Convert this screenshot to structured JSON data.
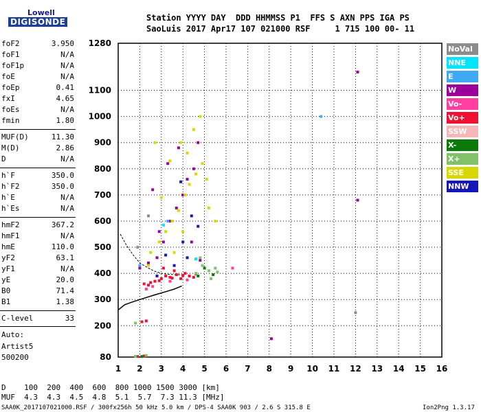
{
  "logo": {
    "line1": "Lowell",
    "line2": "DIGISONDE"
  },
  "header": {
    "line1": "Station YYYY DAY  DDD HHMMSS P1  FFS S AXN PPS IGA PS",
    "line2": "SaoLuis 2017 Apr17 107 021000 RSF     1 715 100 00- 11"
  },
  "params": [
    {
      "name": "foF2",
      "value": "3.950"
    },
    {
      "name": "foF1",
      "value": "N/A"
    },
    {
      "name": "foF1p",
      "value": "N/A"
    },
    {
      "name": "foE",
      "value": "N/A"
    },
    {
      "name": "foEp",
      "value": "0.41"
    },
    {
      "name": "fxI",
      "value": "4.65"
    },
    {
      "name": "foEs",
      "value": "N/A"
    },
    {
      "name": "fmin",
      "value": "1.80"
    },
    {
      "name": "MUF(D)",
      "value": "11.30"
    },
    {
      "name": "M(D)",
      "value": "2.86"
    },
    {
      "name": "D",
      "value": "N/A"
    },
    {
      "name": "h`F",
      "value": "350.0"
    },
    {
      "name": "h`F2",
      "value": "350.0"
    },
    {
      "name": "h`E",
      "value": "N/A"
    },
    {
      "name": "h`Es",
      "value": "N/A"
    },
    {
      "name": "hmF2",
      "value": "367.2"
    },
    {
      "name": "hmF1",
      "value": "N/A"
    },
    {
      "name": "hmE",
      "value": "110.0"
    },
    {
      "name": "yF2",
      "value": "63.1"
    },
    {
      "name": "yF1",
      "value": "N/A"
    },
    {
      "name": "yE",
      "value": "20.0"
    },
    {
      "name": "B0",
      "value": "71.4"
    },
    {
      "name": "B1",
      "value": "1.38"
    },
    {
      "name": "C-level",
      "value": "33"
    }
  ],
  "auto": {
    "label": "Auto:",
    "artist": "Artist5",
    "version": "500200"
  },
  "legend": [
    {
      "label": "NoVal",
      "color": "#8c8c8c"
    },
    {
      "label": "NNE",
      "color": "#00e5ff"
    },
    {
      "label": "E",
      "color": "#3fa9f5"
    },
    {
      "label": "W",
      "color": "#9b009b"
    },
    {
      "label": "Vo-",
      "color": "#ff3fa0"
    },
    {
      "label": "Vo+",
      "color": "#ee1131"
    },
    {
      "label": "SSW",
      "color": "#f4b6b6"
    },
    {
      "label": "X-",
      "color": "#0b7a0b"
    },
    {
      "label": "X+",
      "color": "#82c06a"
    },
    {
      "label": "SSE",
      "color": "#d8d800"
    },
    {
      "label": "NNW",
      "color": "#1616b8"
    }
  ],
  "bottom": {
    "d_row": "D    100  200  400  600  800 1000 1500 3000 [km]",
    "muf_row": "MUF  4.3  4.3  4.5  4.8  5.1  5.7  7.3 11.3 [MHz]",
    "footer_left": "SAA0K_2017107021000.RSF / 300fx256h 50 kHz 5.0 km / DPS-4 SAA0K 903 / 2.6 S 315.8 E",
    "footer_right": "Ion2Png 1.3.17"
  },
  "chart_data": {
    "type": "scatter",
    "title": "",
    "xlabel": "",
    "ylabel": "",
    "xlim": [
      1,
      16
    ],
    "ylim": [
      80,
      1280
    ],
    "x_ticks": [
      1,
      2,
      3,
      4,
      5,
      6,
      7,
      8,
      9,
      10,
      11,
      12,
      13,
      14,
      15,
      16
    ],
    "y_ticks": [
      80,
      200,
      300,
      400,
      500,
      600,
      700,
      800,
      900,
      1000,
      1100,
      1280
    ],
    "grid": true,
    "legend_position": "right",
    "series": [
      {
        "name": "Vo+",
        "color": "#ee1131",
        "points": [
          [
            2.2,
            360
          ],
          [
            2.4,
            355
          ],
          [
            2.7,
            370
          ],
          [
            3.0,
            380
          ],
          [
            3.2,
            390
          ],
          [
            3.4,
            385
          ],
          [
            3.7,
            395
          ],
          [
            3.9,
            380
          ],
          [
            4.1,
            400
          ],
          [
            4.3,
            390
          ],
          [
            4.5,
            385
          ],
          [
            2.5,
            365
          ],
          [
            2.9,
            372
          ],
          [
            3.5,
            382
          ],
          [
            4.0,
            392
          ],
          [
            4.6,
            398
          ],
          [
            3.1,
            420
          ],
          [
            3.6,
            410
          ],
          [
            2.1,
            215
          ],
          [
            2.3,
            218
          ],
          [
            1.9,
            82
          ],
          [
            2.2,
            84
          ]
        ]
      },
      {
        "name": "W",
        "color": "#9b009b",
        "points": [
          [
            2.0,
            420
          ],
          [
            2.4,
            440
          ],
          [
            2.8,
            460
          ],
          [
            3.1,
            520
          ],
          [
            3.4,
            600
          ],
          [
            3.7,
            650
          ],
          [
            4.0,
            700
          ],
          [
            4.2,
            760
          ],
          [
            4.5,
            800
          ],
          [
            4.7,
            900
          ],
          [
            3.3,
            820
          ],
          [
            3.8,
            880
          ],
          [
            4.4,
            520
          ],
          [
            4.8,
            450
          ],
          [
            8.1,
            150
          ],
          [
            12.1,
            680
          ],
          [
            12.1,
            1170
          ],
          [
            2.6,
            720
          ],
          [
            2.9,
            560
          ]
        ]
      },
      {
        "name": "SSE",
        "color": "#d8d800",
        "points": [
          [
            2.5,
            480
          ],
          [
            2.9,
            520
          ],
          [
            3.2,
            560
          ],
          [
            3.5,
            600
          ],
          [
            3.8,
            640
          ],
          [
            4.1,
            700
          ],
          [
            4.3,
            740
          ],
          [
            4.6,
            780
          ],
          [
            4.9,
            820
          ],
          [
            5.1,
            760
          ],
          [
            3.4,
            830
          ],
          [
            3.9,
            900
          ],
          [
            4.5,
            950
          ],
          [
            4.8,
            1000
          ],
          [
            5.2,
            650
          ],
          [
            5.5,
            600
          ],
          [
            2.7,
            900
          ],
          [
            2.4,
            430
          ],
          [
            3.0,
            690
          ],
          [
            4.2,
            860
          ],
          [
            4.0,
            560
          ],
          [
            3.6,
            480
          ]
        ]
      },
      {
        "name": "NNW",
        "color": "#1616b8",
        "points": [
          [
            3.6,
            430
          ],
          [
            4.0,
            520
          ],
          [
            4.4,
            620
          ],
          [
            3.2,
            470
          ],
          [
            4.7,
            580
          ],
          [
            3.9,
            750
          ],
          [
            2.8,
            390
          ],
          [
            4.2,
            460
          ]
        ]
      },
      {
        "name": "X+",
        "color": "#82c06a",
        "points": [
          [
            4.6,
            400
          ],
          [
            4.9,
            430
          ],
          [
            5.2,
            410
          ],
          [
            5.5,
            420
          ],
          [
            4.8,
            460
          ],
          [
            5.3,
            380
          ],
          [
            5.6,
            405
          ],
          [
            1.8,
            83
          ],
          [
            2.3,
            86
          ],
          [
            1.8,
            210
          ]
        ]
      },
      {
        "name": "X-",
        "color": "#0b7a0b",
        "points": [
          [
            4.7,
            390
          ],
          [
            5.0,
            420
          ],
          [
            5.4,
            395
          ],
          [
            2.1,
            82
          ]
        ]
      },
      {
        "name": "Vo-",
        "color": "#ff3fa0",
        "points": [
          [
            2.3,
            340
          ],
          [
            3.4,
            370
          ],
          [
            4.2,
            375
          ],
          [
            6.3,
            420
          ],
          [
            2.6,
            350
          ]
        ]
      },
      {
        "name": "E",
        "color": "#3fa9f5",
        "points": [
          [
            10.4,
            1000
          ],
          [
            2.0,
            430
          ],
          [
            3.3,
            600
          ]
        ]
      },
      {
        "name": "NNE",
        "color": "#00e5ff",
        "points": [
          [
            3.1,
            585
          ],
          [
            4.6,
            455
          ]
        ]
      },
      {
        "name": "NoVal",
        "color": "#8c8c8c",
        "points": [
          [
            12.0,
            250
          ],
          [
            1.9,
            500
          ],
          [
            2.4,
            620
          ]
        ]
      }
    ],
    "profile_line": [
      [
        1.0,
        260
      ],
      [
        1.3,
        280
      ],
      [
        1.7,
        292
      ],
      [
        2.2,
        305
      ],
      [
        2.7,
        318
      ],
      [
        3.2,
        330
      ],
      [
        3.6,
        340
      ],
      [
        3.95,
        352
      ]
    ],
    "trace_line": [
      [
        1.1,
        550
      ],
      [
        1.4,
        505
      ],
      [
        1.7,
        470
      ],
      [
        2.0,
        440
      ],
      [
        2.4,
        420
      ],
      [
        2.7,
        408
      ],
      [
        3.0,
        400
      ],
      [
        3.3,
        397
      ],
      [
        3.6,
        395
      ],
      [
        3.95,
        395
      ]
    ]
  }
}
